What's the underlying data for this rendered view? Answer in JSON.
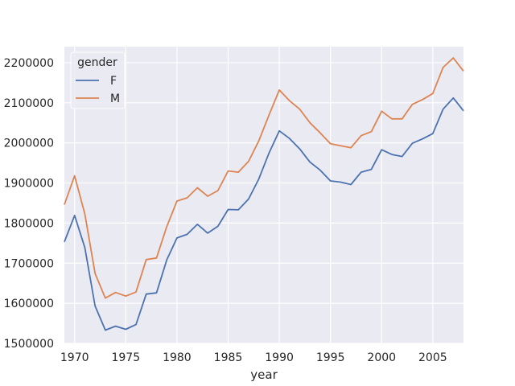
{
  "chart_data": {
    "type": "line",
    "xlabel": "year",
    "ylabel": "",
    "xlim": [
      1969,
      2008
    ],
    "ylim": [
      1500000,
      2240000
    ],
    "xticks": [
      1970,
      1975,
      1980,
      1985,
      1990,
      1995,
      2000,
      2005
    ],
    "xtick_labels": [
      "1970",
      "1975",
      "1980",
      "1985",
      "1990",
      "1995",
      "2000",
      "2005"
    ],
    "yticks": [
      1500000,
      1600000,
      1700000,
      1800000,
      1900000,
      2000000,
      2100000,
      2200000
    ],
    "ytick_labels": [
      "1500000",
      "1600000",
      "1700000",
      "1800000",
      "1900000",
      "2000000",
      "2100000",
      "2200000"
    ],
    "grid": true,
    "legend": {
      "title": "gender",
      "placement": "top-left"
    },
    "x": [
      1969,
      1970,
      1971,
      1972,
      1973,
      1974,
      1975,
      1976,
      1977,
      1978,
      1979,
      1980,
      1981,
      1982,
      1983,
      1984,
      1985,
      1986,
      1987,
      1988,
      1989,
      1990,
      1991,
      1992,
      1993,
      1994,
      1995,
      1996,
      1997,
      1998,
      1999,
      2000,
      2001,
      2002,
      2003,
      2004,
      2005,
      2006,
      2007,
      2008
    ],
    "series": [
      {
        "name": "F",
        "color": "#4c72b0",
        "values": [
          1753000,
          1819000,
          1739000,
          1593000,
          1533000,
          1543000,
          1535000,
          1547000,
          1623000,
          1626000,
          1708000,
          1763000,
          1772000,
          1797000,
          1775000,
          1792000,
          1834000,
          1833000,
          1860000,
          1910000,
          1975000,
          2030000,
          2011000,
          1985000,
          1952000,
          1932000,
          1905000,
          1902000,
          1896000,
          1927000,
          1934000,
          1983000,
          1971000,
          1966000,
          1999000,
          2010000,
          2023000,
          2084000,
          2112000,
          2080000
        ]
      },
      {
        "name": "M",
        "color": "#dd8452",
        "values": [
          1846000,
          1918000,
          1823000,
          1674000,
          1613000,
          1627000,
          1618000,
          1628000,
          1709000,
          1713000,
          1791000,
          1855000,
          1863000,
          1888000,
          1867000,
          1881000,
          1930000,
          1927000,
          1954000,
          2005000,
          2070000,
          2132000,
          2105000,
          2084000,
          2050000,
          2025000,
          1998000,
          1993000,
          1988000,
          2018000,
          2028000,
          2079000,
          2060000,
          2060000,
          2096000,
          2108000,
          2123000,
          2188000,
          2212000,
          2179000
        ]
      }
    ]
  }
}
